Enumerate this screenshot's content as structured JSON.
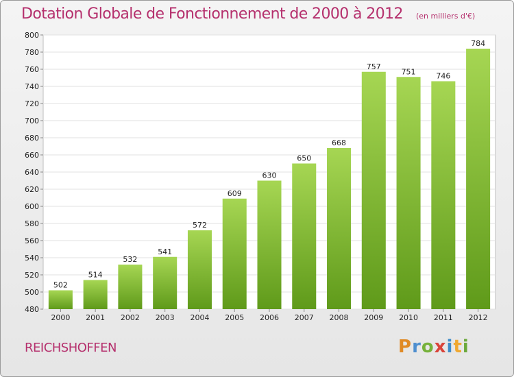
{
  "title": "Dotation Globale de Fonctionnement de 2000 à 2012",
  "unit_note": "(en milliers d'€)",
  "location": "REICHSHOFFEN",
  "logo_text": "Proxiti",
  "colors": {
    "bar_top": "#a6d653",
    "bar_bottom": "#5f9a1a",
    "title": "#b5306d"
  },
  "chart_data": {
    "type": "bar",
    "title": "Dotation Globale de Fonctionnement de 2000 à 2012",
    "subtitle": "(en milliers d'€)",
    "xlabel": "",
    "ylabel": "",
    "categories": [
      "2000",
      "2001",
      "2002",
      "2003",
      "2004",
      "2005",
      "2006",
      "2007",
      "2008",
      "2009",
      "2010",
      "2011",
      "2012"
    ],
    "values": [
      502,
      514,
      532,
      541,
      572,
      609,
      630,
      650,
      668,
      757,
      751,
      746,
      784
    ],
    "ylim": [
      480,
      800
    ],
    "ytick_step": 20,
    "grid": true,
    "data_labels": true
  }
}
